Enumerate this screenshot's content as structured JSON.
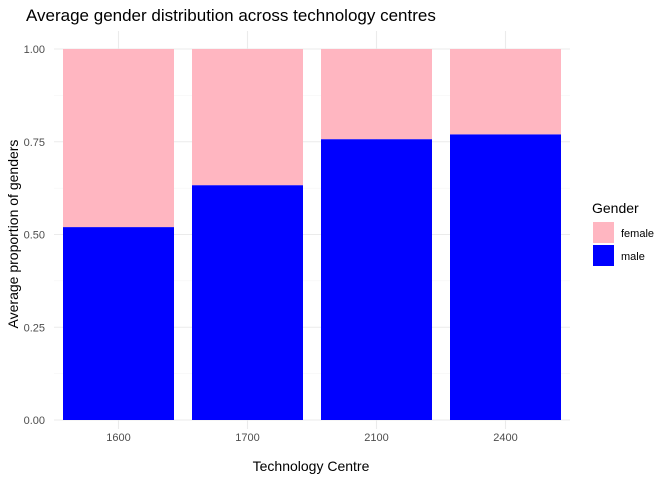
{
  "chart_data": {
    "type": "bar",
    "stacked": true,
    "title": "Average gender distribution across technology centres",
    "xlabel": "Technology Centre",
    "ylabel": "Average proportion of genders",
    "categories": [
      "1600",
      "1700",
      "2100",
      "2400"
    ],
    "series": [
      {
        "name": "male",
        "color": "#0000ff",
        "values": [
          0.52,
          0.633,
          0.757,
          0.77
        ]
      },
      {
        "name": "female",
        "color": "#ffb6c1",
        "values": [
          0.48,
          0.367,
          0.243,
          0.23
        ]
      }
    ],
    "ylim": [
      0,
      1
    ],
    "yticks": [
      {
        "value": 0,
        "label": "0.00"
      },
      {
        "value": 0.25,
        "label": "0.25"
      },
      {
        "value": 0.5,
        "label": "0.50"
      },
      {
        "value": 0.75,
        "label": "0.75"
      },
      {
        "value": 1,
        "label": "1.00"
      }
    ],
    "grid": true,
    "legend": {
      "title": "Gender",
      "position": "right",
      "entries": [
        {
          "label": "female",
          "color": "#ffb6c1"
        },
        {
          "label": "male",
          "color": "#0000ff"
        }
      ]
    }
  }
}
